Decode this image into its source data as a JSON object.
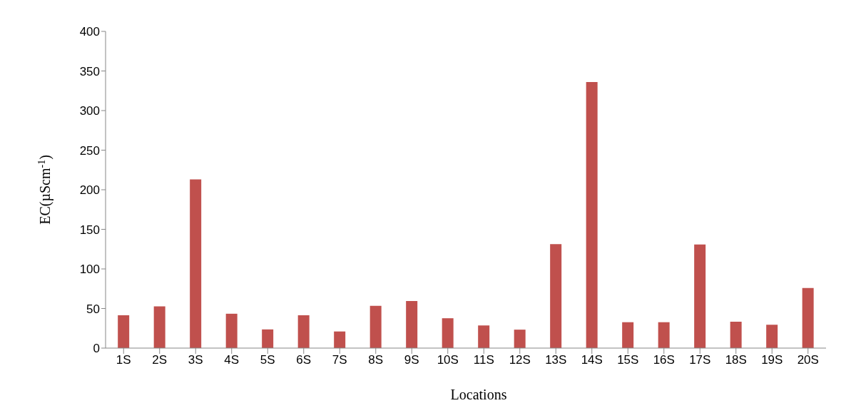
{
  "chart_data": {
    "type": "bar",
    "xlabel": "Locations",
    "ylabel": "EC(µScm$^{-1}$)",
    "categories": [
      "1S",
      "2S",
      "3S",
      "4S",
      "5S",
      "6S",
      "7S",
      "8S",
      "9S",
      "10S",
      "11S",
      "12S",
      "13S",
      "14S",
      "15S",
      "16S",
      "17S",
      "18S",
      "19S",
      "20S"
    ],
    "values": [
      41.5,
      52.8,
      213,
      43.4,
      23.6,
      41.5,
      21,
      53.4,
      59.4,
      37.7,
      28.6,
      23.3,
      131.4,
      336,
      32.7,
      32.7,
      130.8,
      33.3,
      29.5,
      76
    ],
    "color": "#c0504d",
    "ylim": [
      0,
      400
    ],
    "yticks": [
      0,
      50,
      100,
      150,
      200,
      250,
      300,
      350,
      400
    ],
    "grid": false
  }
}
